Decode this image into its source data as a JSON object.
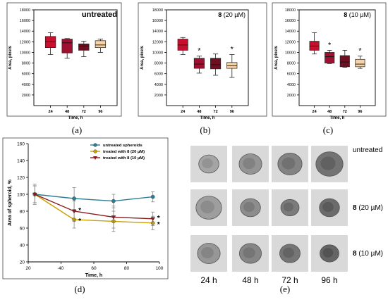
{
  "figure": {
    "panel_labels": [
      "(a)",
      "(b)",
      "(c)",
      "(d)",
      "(e)"
    ]
  },
  "chart_data": [
    {
      "id": "a",
      "type": "box",
      "title": "untreated",
      "xlabel": "Time, h",
      "ylabel": "Area, pixels",
      "categories": [
        "24",
        "48",
        "72",
        "96"
      ],
      "ylim": [
        0,
        18000
      ],
      "yticks": [
        2000,
        4000,
        6000,
        8000,
        10000,
        12000,
        14000,
        16000,
        18000
      ],
      "colors": [
        "#c8102e",
        "#a01030",
        "#6e0f22",
        "#f6d3a7"
      ],
      "boxes": [
        {
          "whisker_low": 9600,
          "q1": 10900,
          "median": 12000,
          "q3": 13000,
          "whisker_high": 13700,
          "star": ""
        },
        {
          "whisker_low": 8900,
          "q1": 9900,
          "median": 11800,
          "q3": 12500,
          "whisker_high": 12600,
          "star": ""
        },
        {
          "whisker_low": 9200,
          "q1": 10400,
          "median": 11200,
          "q3": 11600,
          "whisker_high": 12100,
          "star": ""
        },
        {
          "whisker_low": 10000,
          "q1": 10900,
          "median": 11400,
          "q3": 12200,
          "whisker_high": 12500,
          "star": ""
        }
      ]
    },
    {
      "id": "b",
      "type": "box",
      "title_bold": "8",
      "title_rest": " (20 µM)",
      "xlabel": "Time, h",
      "ylabel": "Area, pixels",
      "categories": [
        "24",
        "48",
        "72",
        "96"
      ],
      "ylim": [
        0,
        18000
      ],
      "yticks": [
        2000,
        4000,
        6000,
        8000,
        10000,
        12000,
        14000,
        16000,
        18000
      ],
      "colors": [
        "#c8102e",
        "#a01030",
        "#6e0f22",
        "#f6d3a7"
      ],
      "boxes": [
        {
          "whisker_low": 9600,
          "q1": 10400,
          "median": 11400,
          "q3": 12500,
          "whisker_high": 12800,
          "star": ""
        },
        {
          "whisker_low": 6100,
          "q1": 7000,
          "median": 7800,
          "q3": 8900,
          "whisker_high": 9300,
          "star": "*"
        },
        {
          "whisker_low": 5700,
          "q1": 6900,
          "median": 7700,
          "q3": 8900,
          "whisker_high": 9700,
          "star": ""
        },
        {
          "whisker_low": 5300,
          "q1": 7000,
          "median": 7500,
          "q3": 8100,
          "whisker_high": 9600,
          "star": "*"
        }
      ]
    },
    {
      "id": "c",
      "type": "box",
      "title_bold": "8",
      "title_rest": " (10 µM)",
      "xlabel": "Time, h",
      "ylabel": "Area, pixels",
      "categories": [
        "24",
        "48",
        "72",
        "96"
      ],
      "ylim": [
        0,
        18000
      ],
      "yticks": [
        2000,
        4000,
        6000,
        8000,
        10000,
        12000,
        14000,
        16000,
        18000
      ],
      "colors": [
        "#c8102e",
        "#a01030",
        "#6e0f22",
        "#f6d3a7"
      ],
      "boxes": [
        {
          "whisker_low": 9700,
          "q1": 10400,
          "median": 11200,
          "q3": 12100,
          "whisker_high": 13700,
          "star": ""
        },
        {
          "whisker_low": 7900,
          "q1": 8000,
          "median": 9200,
          "q3": 10000,
          "whisker_high": 10400,
          "star": "*"
        },
        {
          "whisker_low": 7200,
          "q1": 7300,
          "median": 8200,
          "q3": 9400,
          "whisker_high": 10400,
          "star": ""
        },
        {
          "whisker_low": 7000,
          "q1": 7300,
          "median": 7800,
          "q3": 8700,
          "whisker_high": 9300,
          "star": "*"
        }
      ]
    },
    {
      "id": "d",
      "type": "line",
      "xlabel": "Time, h",
      "ylabel": "Area of spheroid, %",
      "xlim": [
        20,
        100
      ],
      "ylim": [
        20,
        160
      ],
      "xticks": [
        20,
        40,
        60,
        80,
        100
      ],
      "yticks": [
        20,
        40,
        60,
        80,
        100,
        120,
        140,
        160
      ],
      "x": [
        24,
        48,
        72,
        96
      ],
      "series": [
        {
          "name": "untreated spheroids",
          "color": "#2e7d94",
          "marker": "circle",
          "values": [
            100,
            95,
            92,
            97
          ],
          "errors": [
            12,
            13,
            8,
            6
          ],
          "stars": [
            "",
            "",
            "",
            ""
          ]
        },
        {
          "name": "treated with 8 (20 µM)",
          "color": "#c8a000",
          "marker": "circle",
          "values": [
            100,
            70,
            68,
            66
          ],
          "errors": [
            10,
            10,
            12,
            8
          ],
          "stars": [
            "",
            "*",
            "",
            "*"
          ]
        },
        {
          "name": "treated with 8 (10 µM)",
          "color": "#8b1a1a",
          "marker": "triangle",
          "values": [
            100,
            80,
            73,
            71
          ],
          "errors": [
            10,
            12,
            13,
            8
          ],
          "stars": [
            "",
            "*",
            "",
            "*"
          ]
        }
      ]
    }
  ],
  "micrographs": {
    "rows": [
      {
        "label_bold": "",
        "label_rest": "untreated",
        "sizes": [
          0.55,
          0.62,
          0.66,
          0.74
        ]
      },
      {
        "label_bold": "8",
        "label_rest": " (20 µM)",
        "sizes": [
          0.7,
          0.55,
          0.5,
          0.55
        ]
      },
      {
        "label_bold": "8",
        "label_rest": " (10 µM)",
        "sizes": [
          0.62,
          0.6,
          0.56,
          0.52
        ]
      }
    ],
    "time_labels": [
      "24 h",
      "48 h",
      "72 h",
      "96 h"
    ]
  }
}
